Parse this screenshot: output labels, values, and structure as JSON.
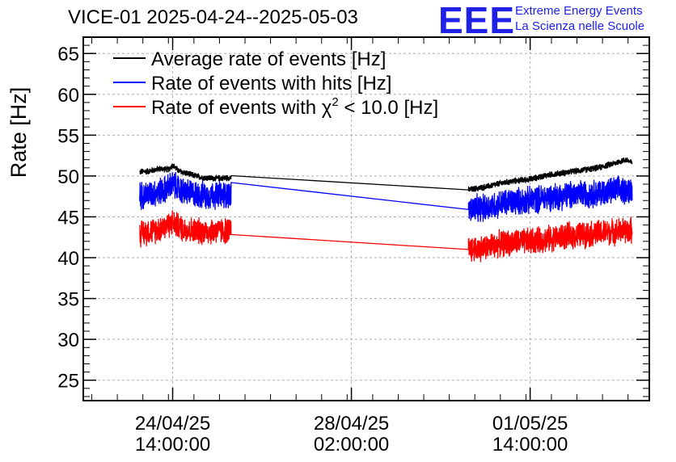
{
  "header": {
    "title": "VICE-01 2025-04-24--2025-05-03",
    "logo_text": "EEE",
    "brand_line1": "Extreme Energy Events",
    "brand_line2": "La Scienza nelle Scuole"
  },
  "colors": {
    "average": "#000000",
    "hits": "#0000ff",
    "chi2": "#ff0000",
    "brand": "#1f22e6",
    "grid": "#b0b0b0"
  },
  "chart_data": {
    "type": "line",
    "title": "VICE-01 2025-04-24--2025-05-03",
    "xlabel": "",
    "ylabel": "Rate [Hz]",
    "x_unit": "hours since 2025-04-24 00:00",
    "xlim": [
      -28,
      238
    ],
    "ylim": [
      22.5,
      67
    ],
    "yticks": [
      25,
      30,
      35,
      40,
      45,
      50,
      55,
      60,
      65
    ],
    "xticks": [
      {
        "x": 14,
        "line1": "24/04/25",
        "line2": "14:00:00"
      },
      {
        "x": 98,
        "line1": "28/04/25",
        "line2": "02:00:00"
      },
      {
        "x": 182,
        "line1": "01/05/25",
        "line2": "14:00:00"
      }
    ],
    "grid": true,
    "legend_position": "top-left",
    "gap": [
      41.5,
      153
    ],
    "series": [
      {
        "name": "Average rate of events [Hz]",
        "legend_label": "Average rate of events [Hz]",
        "color": "#000000",
        "noise": 0.4,
        "points": [
          [
            -1.5,
            50.5
          ],
          [
            3,
            50.6
          ],
          [
            8,
            50.9
          ],
          [
            12,
            50.8
          ],
          [
            14,
            51.3
          ],
          [
            17,
            50.6
          ],
          [
            22,
            50.2
          ],
          [
            28,
            49.8
          ],
          [
            34,
            49.7
          ],
          [
            41.5,
            49.8
          ],
          [
            153,
            48.3
          ],
          [
            160,
            48.6
          ],
          [
            168,
            49.1
          ],
          [
            175,
            49.4
          ],
          [
            182,
            49.6
          ],
          [
            190,
            50.1
          ],
          [
            198,
            50.4
          ],
          [
            206,
            50.7
          ],
          [
            214,
            51.0
          ],
          [
            222,
            51.6
          ],
          [
            227,
            52.0
          ],
          [
            230,
            51.6
          ]
        ]
      },
      {
        "name": "Rate of events with hits [Hz]",
        "legend_label": "Rate of events with hits [Hz]",
        "color": "#0000ff",
        "noise": 1.9,
        "points": [
          [
            -1.5,
            47.6
          ],
          [
            5,
            47.9
          ],
          [
            10,
            48.3
          ],
          [
            14,
            49.0
          ],
          [
            18,
            48.2
          ],
          [
            24,
            47.8
          ],
          [
            30,
            47.6
          ],
          [
            36,
            47.7
          ],
          [
            41.5,
            47.7
          ],
          [
            153,
            45.9
          ],
          [
            160,
            46.1
          ],
          [
            168,
            46.6
          ],
          [
            175,
            46.9
          ],
          [
            182,
            47.0
          ],
          [
            190,
            47.4
          ],
          [
            198,
            47.6
          ],
          [
            206,
            47.8
          ],
          [
            214,
            47.9
          ],
          [
            222,
            48.2
          ],
          [
            230,
            48.3
          ]
        ]
      },
      {
        "name": "Rate of events with χ² < 10.0 [Hz]",
        "legend_label": "Rate of events with χ",
        "legend_sup": "2",
        "legend_tail": " < 10.0 [Hz]",
        "color": "#ff0000",
        "noise": 1.8,
        "points": [
          [
            -1.5,
            43.0
          ],
          [
            5,
            43.3
          ],
          [
            10,
            43.8
          ],
          [
            14,
            44.3
          ],
          [
            18,
            43.6
          ],
          [
            24,
            43.3
          ],
          [
            30,
            43.2
          ],
          [
            36,
            43.3
          ],
          [
            41.5,
            43.3
          ],
          [
            153,
            41.0
          ],
          [
            160,
            41.2
          ],
          [
            168,
            41.7
          ],
          [
            175,
            41.9
          ],
          [
            182,
            42.0
          ],
          [
            190,
            42.3
          ],
          [
            198,
            42.6
          ],
          [
            206,
            42.8
          ],
          [
            214,
            43.0
          ],
          [
            222,
            43.2
          ],
          [
            230,
            43.4
          ]
        ]
      }
    ]
  }
}
